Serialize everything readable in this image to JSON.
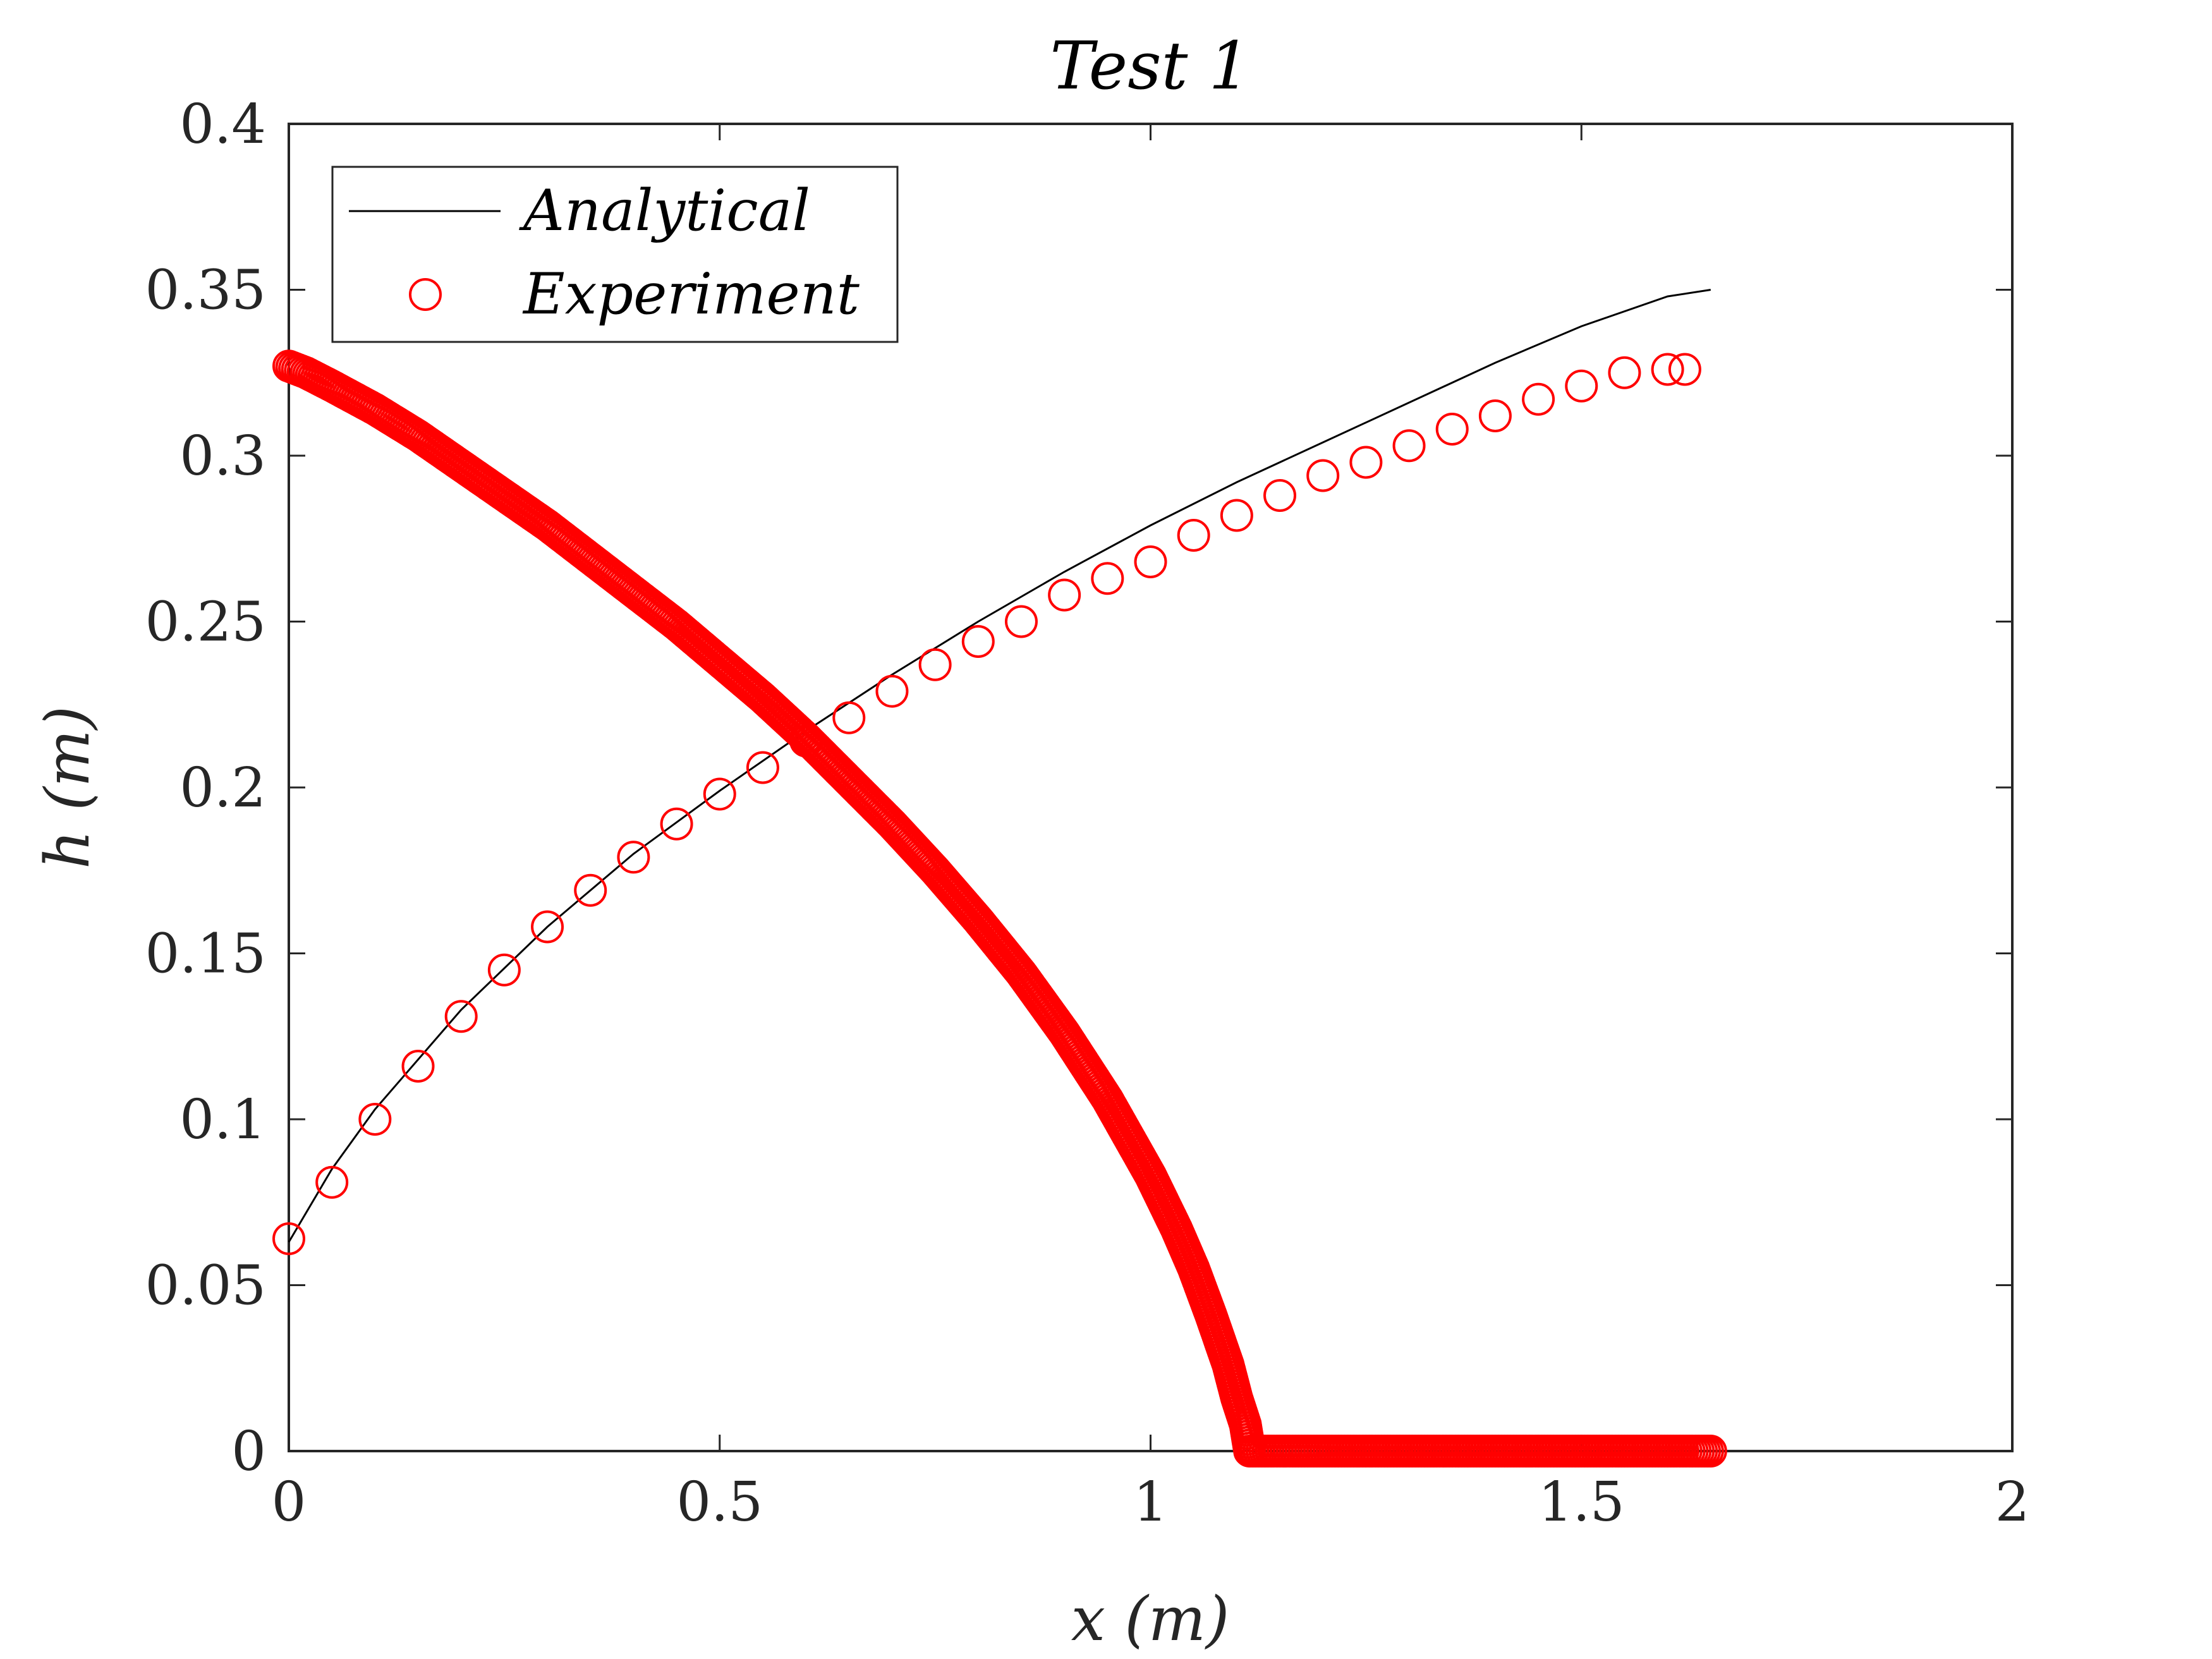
{
  "chart_data": {
    "type": "scatter",
    "title": "Test   1",
    "xlabel": "x   (m)",
    "ylabel": "h   (m)",
    "xlim": [
      0,
      2
    ],
    "ylim": [
      0,
      0.4
    ],
    "xticks": [
      "0",
      "0.5",
      "1",
      "1.5",
      "2"
    ],
    "yticks": [
      "0",
      "0.05",
      "0.1",
      "0.15",
      "0.2",
      "0.25",
      "0.3",
      "0.35",
      "0.4"
    ],
    "grid": false,
    "legend_position": "top-left",
    "colors": {
      "analytical": "#000000",
      "experiment": "#ff0000"
    },
    "series": [
      {
        "name": "Analytical",
        "kind": "line",
        "x": [
          0.0,
          0.05,
          0.1,
          0.2,
          0.3,
          0.4,
          0.5,
          0.6,
          0.7,
          0.8,
          0.9,
          1.0,
          1.1,
          1.2,
          1.3,
          1.4,
          1.5,
          1.6,
          1.65
        ],
        "y": [
          0.063,
          0.085,
          0.103,
          0.133,
          0.158,
          0.18,
          0.199,
          0.217,
          0.234,
          0.25,
          0.265,
          0.279,
          0.292,
          0.304,
          0.316,
          0.328,
          0.339,
          0.348,
          0.35
        ]
      },
      {
        "name": "Experiment",
        "kind": "markers",
        "x": [
          0.0,
          0.05,
          0.1,
          0.15,
          0.2,
          0.25,
          0.3,
          0.35,
          0.4,
          0.45,
          0.5,
          0.55,
          0.6,
          0.65,
          0.7,
          0.75,
          0.8,
          0.85,
          0.9,
          0.95,
          1.0,
          1.05,
          1.1,
          1.15,
          1.2,
          1.25,
          1.3,
          1.35,
          1.4,
          1.45,
          1.5,
          1.55,
          1.6,
          1.62
        ],
        "y": [
          0.064,
          0.081,
          0.1,
          0.116,
          0.131,
          0.145,
          0.158,
          0.169,
          0.179,
          0.189,
          0.198,
          0.206,
          0.214,
          0.221,
          0.229,
          0.237,
          0.244,
          0.25,
          0.258,
          0.263,
          0.268,
          0.276,
          0.282,
          0.288,
          0.294,
          0.298,
          0.303,
          0.308,
          0.312,
          0.317,
          0.321,
          0.325,
          0.326,
          0.326
        ]
      },
      {
        "name": "",
        "kind": "markers",
        "curve": [
          [
            0.0,
            0.327
          ],
          [
            0.02,
            0.325
          ],
          [
            0.05,
            0.321
          ],
          [
            0.1,
            0.314
          ],
          [
            0.15,
            0.306
          ],
          [
            0.2,
            0.297
          ],
          [
            0.25,
            0.288
          ],
          [
            0.3,
            0.279
          ],
          [
            0.35,
            0.269
          ],
          [
            0.4,
            0.259
          ],
          [
            0.45,
            0.249
          ],
          [
            0.5,
            0.238
          ],
          [
            0.55,
            0.227
          ],
          [
            0.6,
            0.215
          ],
          [
            0.65,
            0.202
          ],
          [
            0.7,
            0.189
          ],
          [
            0.75,
            0.175
          ],
          [
            0.8,
            0.16
          ],
          [
            0.85,
            0.144
          ],
          [
            0.9,
            0.126
          ],
          [
            0.95,
            0.106
          ],
          [
            1.0,
            0.083
          ],
          [
            1.03,
            0.067
          ],
          [
            1.05,
            0.055
          ],
          [
            1.07,
            0.041
          ],
          [
            1.09,
            0.026
          ],
          [
            1.1,
            0.016
          ],
          [
            1.11,
            0.008
          ],
          [
            1.115,
            0.0
          ],
          [
            1.2,
            0.0
          ],
          [
            1.3,
            0.0
          ],
          [
            1.4,
            0.0
          ],
          [
            1.5,
            0.0
          ],
          [
            1.6,
            0.0
          ],
          [
            1.65,
            0.0
          ]
        ]
      }
    ]
  }
}
